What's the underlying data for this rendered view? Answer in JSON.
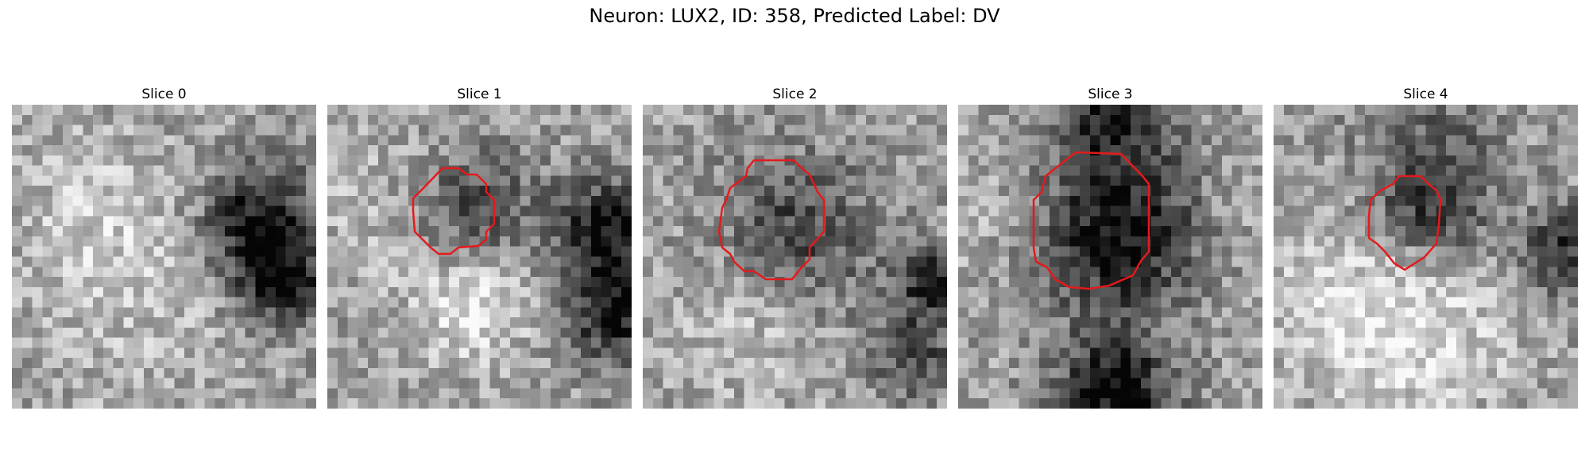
{
  "figure": {
    "title": "Neuron: LUX2, ID: 358, Predicted Label: DV"
  },
  "panels": [
    {
      "title": "Slice 0",
      "has_contour": false
    },
    {
      "title": "Slice 1",
      "has_contour": true
    },
    {
      "title": "Slice 2",
      "has_contour": true
    },
    {
      "title": "Slice 3",
      "has_contour": true
    },
    {
      "title": "Slice 4",
      "has_contour": true
    }
  ],
  "colors": {
    "contour": "#e41a1c",
    "background": "#ffffff"
  },
  "image_grid": 30
}
